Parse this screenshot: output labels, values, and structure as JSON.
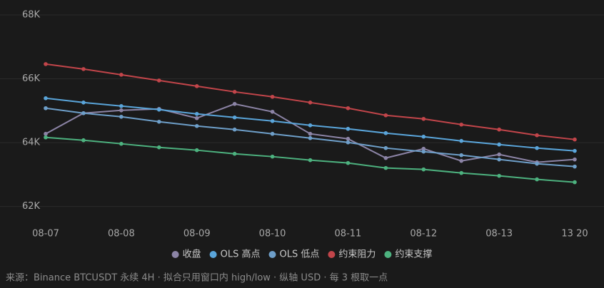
{
  "chart_data": {
    "type": "line",
    "categories": [
      "08-07",
      null,
      "08-08",
      null,
      "08-09",
      null,
      "08-10",
      null,
      "08-11",
      null,
      "08-12",
      null,
      "08-13",
      null,
      "13 20"
    ],
    "ylim": [
      61500,
      68000
    ],
    "yticks": [
      {
        "value": 62000,
        "label": "62K"
      },
      {
        "value": 64000,
        "label": "64K"
      },
      {
        "value": 66000,
        "label": "66K"
      },
      {
        "value": 68000,
        "label": "68K"
      }
    ],
    "grid": true,
    "legend": "bottom",
    "series": [
      {
        "name": "收盘",
        "color": "#8c84a6",
        "values": [
          64276,
          64923,
          65012,
          65057,
          64767,
          65213,
          64967,
          64276,
          64120,
          63518,
          63808,
          63428,
          63629,
          63384,
          63473
        ]
      },
      {
        "name": "OLS 高点",
        "color": "#5aa5da",
        "values": [
          65391,
          65257,
          65146,
          65034,
          64900,
          64789,
          64677,
          64543,
          64432,
          64298,
          64187,
          64053,
          63941,
          63830,
          63741
        ]
      },
      {
        "name": "OLS 低点",
        "color": "#6e9fc9",
        "values": [
          65079,
          64923,
          64811,
          64655,
          64521,
          64410,
          64276,
          64142,
          64008,
          63830,
          63718,
          63607,
          63473,
          63339,
          63250
        ]
      },
      {
        "name": "约束阻力",
        "color": "#c2454a",
        "values": [
          66461,
          66305,
          66127,
          65948,
          65770,
          65592,
          65436,
          65257,
          65079,
          64856,
          64744,
          64566,
          64410,
          64231,
          64098
        ]
      },
      {
        "name": "约束支撑",
        "color": "#4db27f",
        "values": [
          64164,
          64075,
          63964,
          63852,
          63763,
          63651,
          63562,
          63451,
          63362,
          63206,
          63161,
          63049,
          62960,
          62849,
          62760
        ]
      }
    ],
    "note": "来源：Binance BTCUSDT 永续 4H · 拟合只用窗口内 high/low · 纵轴 USD · 每 3 根取一点"
  }
}
